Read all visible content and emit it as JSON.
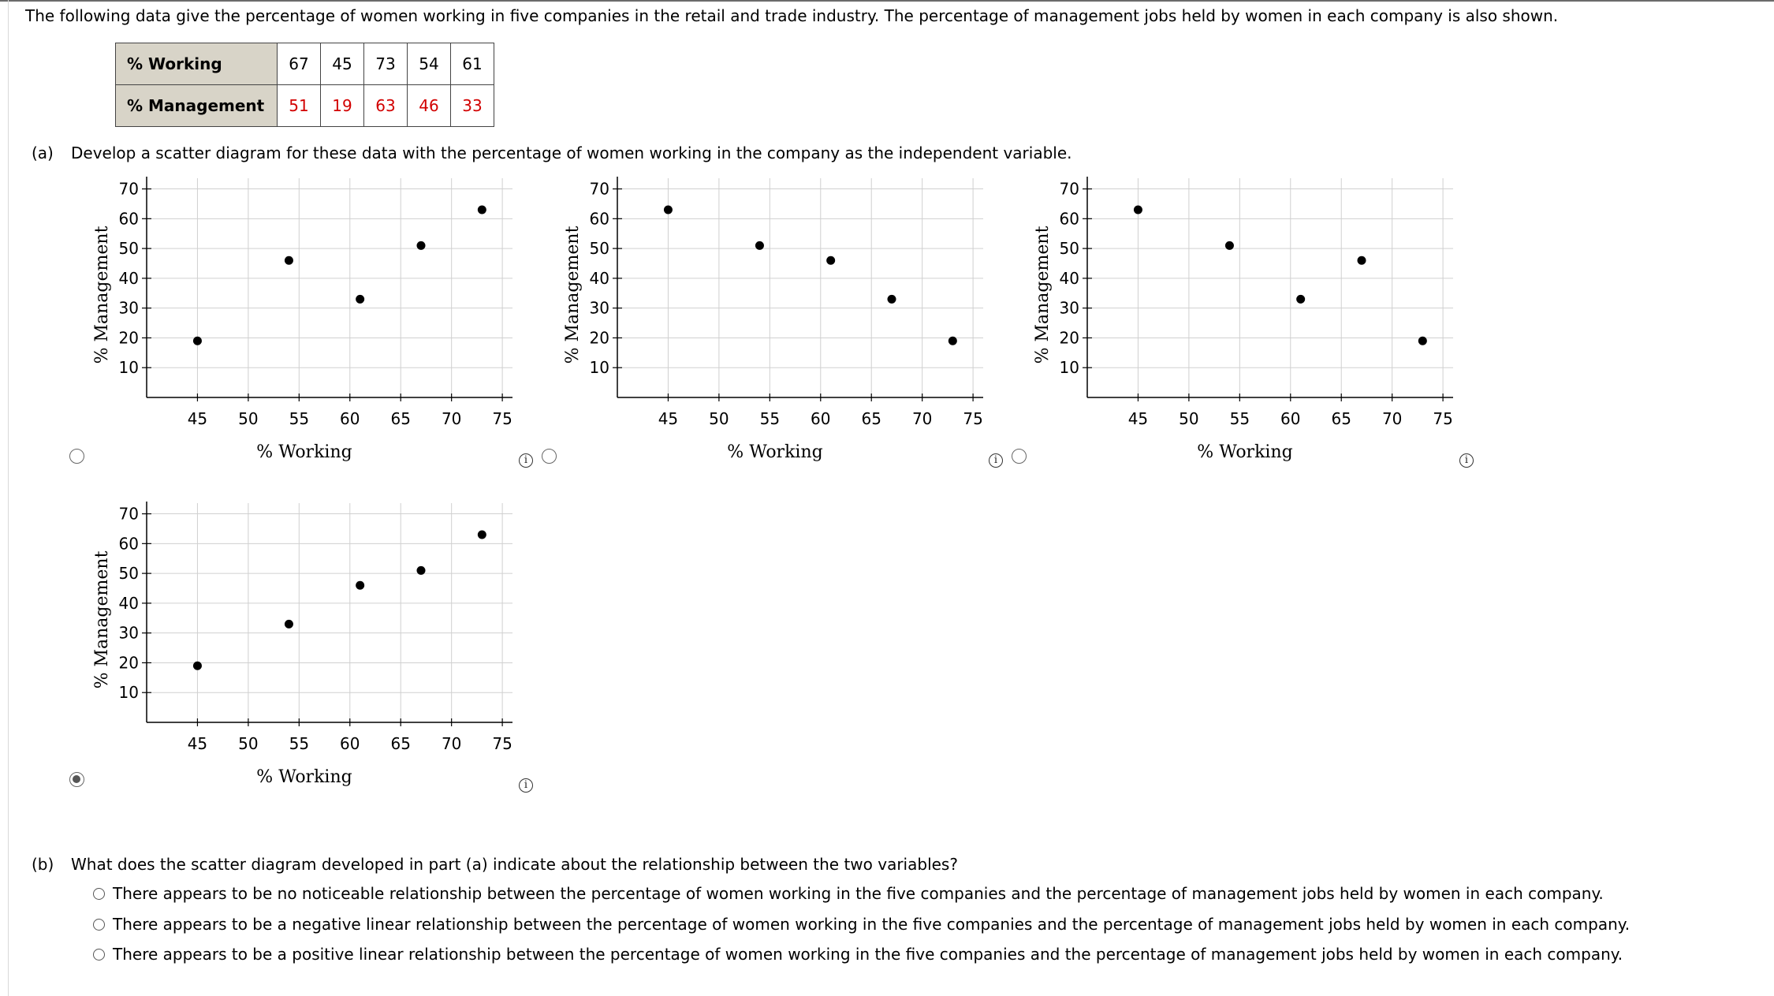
{
  "intro": "The following data give the percentage of women working in five companies in the retail and trade industry. The percentage of management jobs held by women in each company is also shown.",
  "table": {
    "working_label": "% Working",
    "management_label": "% Management",
    "working": [
      "67",
      "45",
      "73",
      "54",
      "61"
    ],
    "management": [
      "51",
      "19",
      "63",
      "46",
      "33"
    ]
  },
  "part_a": {
    "label": "(a)",
    "text": "Develop a scatter diagram for these data with the percentage of women working in the company as the independent variable."
  },
  "colors": {
    "data_point": "#000000",
    "grid": "#d0d0d0",
    "axis": "#000000",
    "given_values": "#d20000"
  },
  "chart_data": [
    {
      "type": "scatter",
      "xlabel": "% Working",
      "ylabel": "% Management",
      "xlim": [
        40,
        76
      ],
      "ylim": [
        0,
        72
      ],
      "xticks": [
        "45",
        "50",
        "55",
        "60",
        "65",
        "70",
        "75"
      ],
      "yticks": [
        "10",
        "20",
        "30",
        "40",
        "50",
        "60",
        "70"
      ],
      "points": [
        [
          45,
          19
        ],
        [
          54,
          46
        ],
        [
          61,
          33
        ],
        [
          67,
          51
        ],
        [
          73,
          63
        ]
      ],
      "selected": false
    },
    {
      "type": "scatter",
      "xlabel": "% Working",
      "ylabel": "% Management",
      "xlim": [
        40,
        76
      ],
      "ylim": [
        0,
        72
      ],
      "xticks": [
        "45",
        "50",
        "55",
        "60",
        "65",
        "70",
        "75"
      ],
      "yticks": [
        "10",
        "20",
        "30",
        "40",
        "50",
        "60",
        "70"
      ],
      "points": [
        [
          45,
          63
        ],
        [
          54,
          51
        ],
        [
          61,
          46
        ],
        [
          67,
          33
        ],
        [
          73,
          19
        ]
      ],
      "selected": false
    },
    {
      "type": "scatter",
      "xlabel": "% Working",
      "ylabel": "% Management",
      "xlim": [
        40,
        76
      ],
      "ylim": [
        0,
        72
      ],
      "xticks": [
        "45",
        "50",
        "55",
        "60",
        "65",
        "70",
        "75"
      ],
      "yticks": [
        "10",
        "20",
        "30",
        "40",
        "50",
        "60",
        "70"
      ],
      "points": [
        [
          45,
          63
        ],
        [
          54,
          51
        ],
        [
          61,
          33
        ],
        [
          67,
          46
        ],
        [
          73,
          19
        ]
      ],
      "selected": false
    },
    {
      "type": "scatter",
      "xlabel": "% Working",
      "ylabel": "% Management",
      "xlim": [
        40,
        76
      ],
      "ylim": [
        0,
        72
      ],
      "xticks": [
        "45",
        "50",
        "55",
        "60",
        "65",
        "70",
        "75"
      ],
      "yticks": [
        "10",
        "20",
        "30",
        "40",
        "50",
        "60",
        "70"
      ],
      "points": [
        [
          45,
          19
        ],
        [
          54,
          33
        ],
        [
          61,
          46
        ],
        [
          67,
          51
        ],
        [
          73,
          63
        ]
      ],
      "selected": true
    }
  ],
  "info_icon": "i",
  "part_b": {
    "label": "(b)",
    "question": "What does the scatter diagram developed in part (a) indicate about the relationship between the two variables?",
    "options": [
      "There appears to be no noticeable relationship between the percentage of women working in the five companies and the percentage of management jobs held by women in each company.",
      "There appears to be a negative linear relationship between the percentage of women working in the five companies and the percentage of management jobs held by women in each company.",
      "There appears to be a positive linear relationship between the percentage of women working in the five companies and the percentage of management jobs held by women in each company."
    ]
  }
}
